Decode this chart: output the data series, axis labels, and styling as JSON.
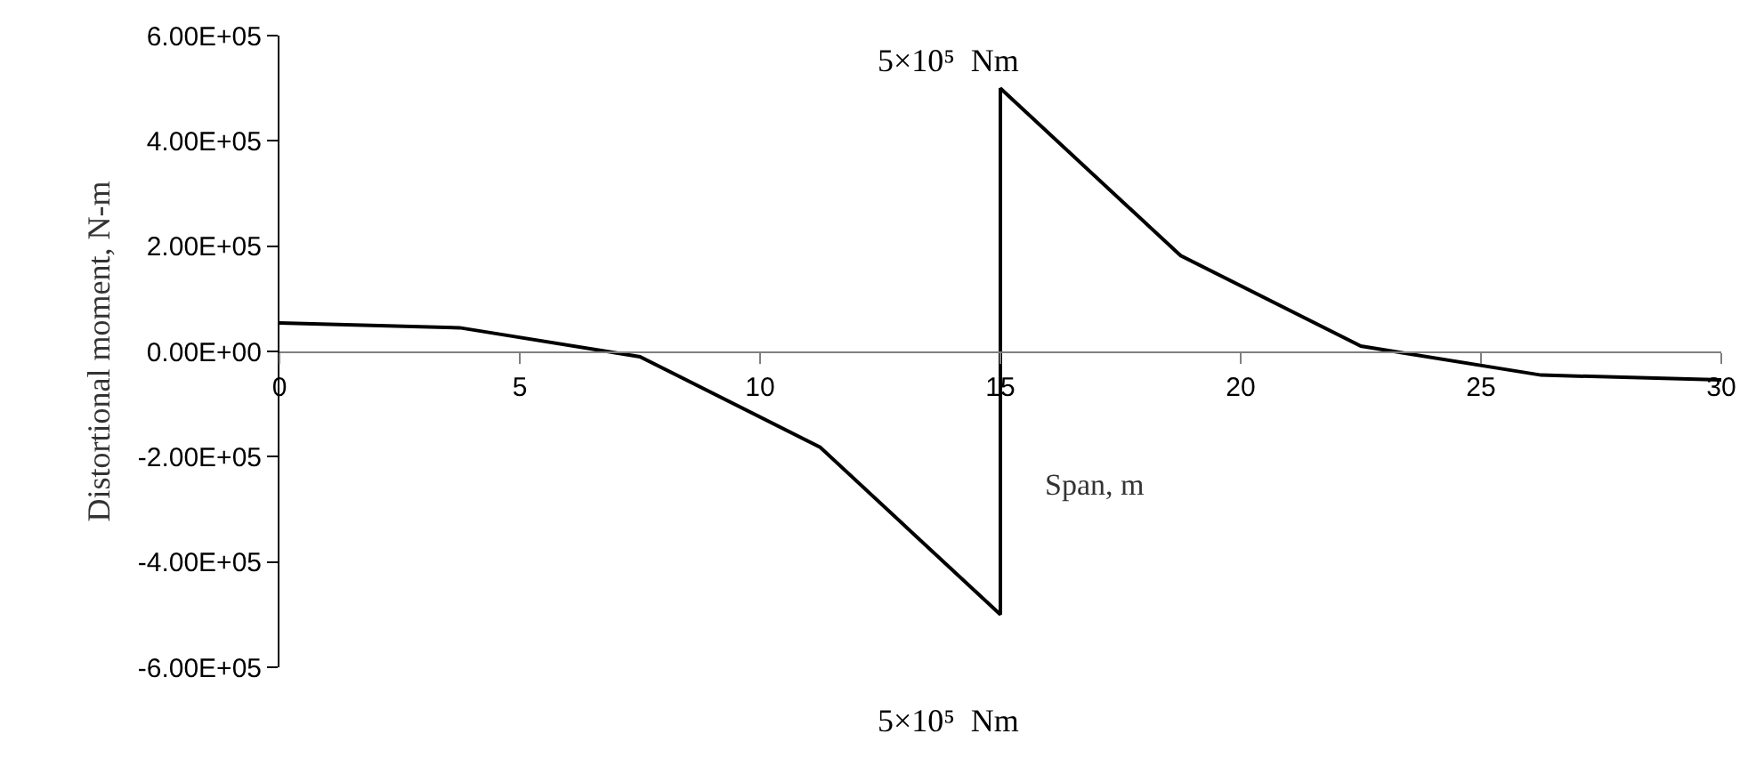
{
  "chart_data": {
    "type": "line",
    "xlabel": "Span, m",
    "ylabel": "Distortional moment, N-m",
    "x": [
      0,
      3.75,
      7.5,
      11.25,
      15,
      15,
      18.75,
      22.5,
      26.25,
      30
    ],
    "series": [
      {
        "color": "#000000",
        "values": [
          54000,
          45000,
          -10000,
          -182000,
          -500000,
          500000,
          182000,
          10000,
          -45000,
          -54000
        ]
      }
    ],
    "xlim": [
      0,
      30
    ],
    "ylim": [
      -600000,
      600000
    ],
    "xticks": [
      0,
      5,
      10,
      15,
      20,
      25,
      30
    ],
    "yticks": [
      {
        "value": -600000,
        "label": "-6.00E+05"
      },
      {
        "value": -400000,
        "label": "-4.00E+05"
      },
      {
        "value": -200000,
        "label": "-2.00E+05"
      },
      {
        "value": 0,
        "label": "0.00E+00"
      },
      {
        "value": 200000,
        "label": "2.00E+05"
      },
      {
        "value": 400000,
        "label": "4.00E+05"
      },
      {
        "value": 600000,
        "label": "6.00E+05"
      }
    ],
    "annotations": [
      {
        "text": "5×10⁵  Nm",
        "x": 15,
        "y": 500000
      },
      {
        "text": "5×10⁵  Nm",
        "x": 15,
        "y": -500000
      }
    ],
    "grid": false,
    "marker": "none",
    "line_style": "solid"
  }
}
